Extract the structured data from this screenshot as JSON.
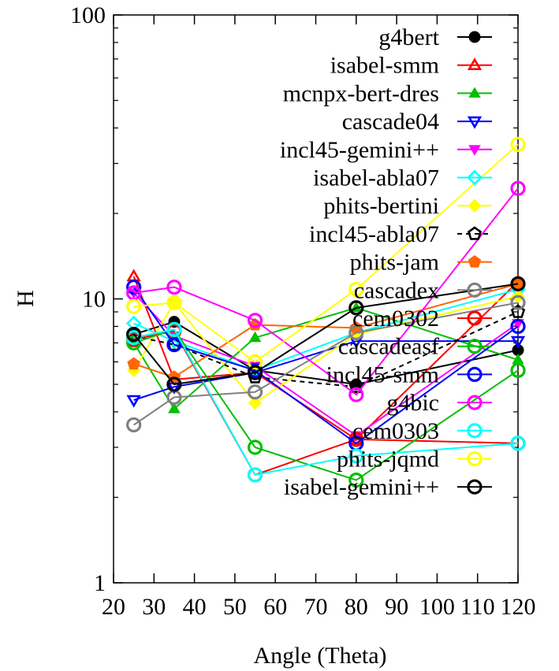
{
  "chart_data": {
    "type": "line",
    "title": "",
    "xlabel": "Angle (Theta)",
    "ylabel": "H",
    "xscale": "linear",
    "yscale": "log",
    "xlim": [
      20,
      120
    ],
    "ylim": [
      1,
      100
    ],
    "x": [
      25,
      35,
      55,
      80,
      120
    ],
    "x_ticks": [
      "20",
      "30",
      "40",
      "50",
      "60",
      "70",
      "80",
      "90",
      "100",
      "110",
      "120"
    ],
    "y_ticks": [
      "1",
      "10",
      "100"
    ],
    "grid": false,
    "legend_position": "top-right, inside",
    "series": [
      {
        "name": "g4bert",
        "color": "#000000",
        "marker": "filled-circle",
        "dash": "solid",
        "values": [
          7.5,
          8.3,
          5.6,
          5.0,
          6.6
        ]
      },
      {
        "name": "isabel-smm",
        "color": "#ff0000",
        "marker": "open-triangle-up",
        "dash": "solid",
        "values": [
          12.0,
          5.2,
          5.5,
          3.2,
          11.5
        ]
      },
      {
        "name": "mcnpx-bert-dres",
        "color": "#00c000",
        "marker": "filled-triangle-up",
        "dash": "solid",
        "values": [
          7.0,
          4.1,
          7.3,
          9.3,
          6.1
        ]
      },
      {
        "name": "cascade04",
        "color": "#0000ff",
        "marker": "open-triangle-down",
        "dash": "solid",
        "values": [
          4.4,
          4.9,
          5.5,
          7.1,
          7.1
        ]
      },
      {
        "name": "incl45-gemini++",
        "color": "#ff00ff",
        "marker": "filled-triangle-down",
        "dash": "solid",
        "values": [
          10.5,
          7.4,
          5.8,
          3.3,
          8.2
        ]
      },
      {
        "name": "isabel-abla07",
        "color": "#00ffff",
        "marker": "open-diamond",
        "dash": "solid",
        "values": [
          8.2,
          7.1,
          5.6,
          7.6,
          10.8
        ]
      },
      {
        "name": "phits-bertini",
        "color": "#ffff00",
        "marker": "filled-diamond",
        "dash": "solid",
        "values": [
          5.6,
          9.7,
          4.3,
          7.5,
          10.2
        ]
      },
      {
        "name": "incl45-abla07",
        "color": "#000000",
        "marker": "open-pentagon",
        "dash": "dashed",
        "values": [
          7.4,
          6.9,
          5.3,
          4.9,
          9.0
        ]
      },
      {
        "name": "phits-jam",
        "color": "#ff6600",
        "marker": "filled-pentagon",
        "dash": "solid",
        "values": [
          5.9,
          5.3,
          8.1,
          7.9,
          11.3
        ]
      },
      {
        "name": "cascadex",
        "color": "#808080",
        "marker": "circle",
        "dash": "solid",
        "values": [
          3.6,
          4.5,
          4.7,
          7.6,
          9.7
        ]
      },
      {
        "name": "cem0302",
        "color": "#ff0000",
        "marker": "circle",
        "dash": "solid",
        "values": [
          7.2,
          7.7,
          2.4,
          3.2,
          3.1
        ]
      },
      {
        "name": "cascadeasf",
        "color": "#00c000",
        "marker": "circle",
        "dash": "solid",
        "values": [
          7.0,
          7.8,
          3.0,
          2.3,
          5.6
        ]
      },
      {
        "name": "incl45-smm",
        "color": "#0000ff",
        "marker": "circle",
        "dash": "solid",
        "values": [
          11.0,
          6.9,
          5.6,
          3.1,
          8.0
        ]
      },
      {
        "name": "g4bic",
        "color": "#ff00ff",
        "marker": "circle",
        "dash": "solid",
        "values": [
          10.5,
          11.0,
          8.4,
          4.6,
          24.5
        ]
      },
      {
        "name": "cem0303",
        "color": "#00ffff",
        "marker": "circle",
        "dash": "solid",
        "values": [
          7.3,
          7.8,
          2.4,
          2.8,
          3.1
        ]
      },
      {
        "name": "phits-jqmd",
        "color": "#ffff00",
        "marker": "circle",
        "dash": "solid",
        "values": [
          9.4,
          9.7,
          6.0,
          10.8,
          35.0
        ]
      },
      {
        "name": "isabel-gemini++",
        "color": "#000000",
        "marker": "circle",
        "dash": "solid",
        "values": [
          7.5,
          5.0,
          5.5,
          9.3,
          11.3
        ]
      }
    ]
  }
}
